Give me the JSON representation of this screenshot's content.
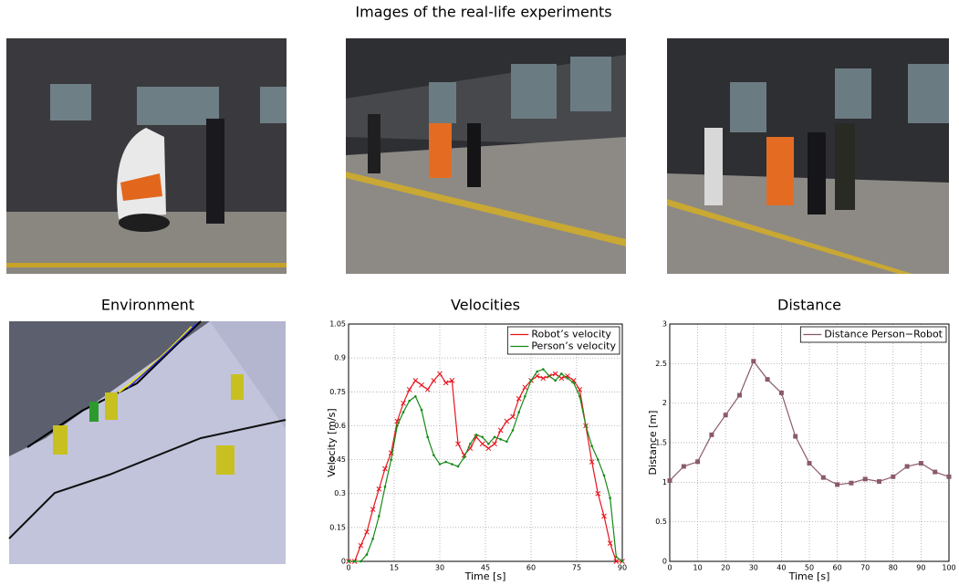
{
  "title": "Images of the real-life experiments",
  "panels": [
    "Environment"
  ],
  "chart_data": [
    {
      "type": "line",
      "title": "Velocities",
      "xlabel": "Time [s]",
      "ylabel": "Velocity [m/s]",
      "x": [
        0,
        2,
        4,
        6,
        8,
        10,
        12,
        14,
        16,
        18,
        20,
        22,
        24,
        26,
        28,
        30,
        32,
        34,
        36,
        38,
        40,
        42,
        44,
        46,
        48,
        50,
        52,
        54,
        56,
        58,
        60,
        62,
        64,
        66,
        68,
        70,
        72,
        74,
        76,
        78,
        80,
        82,
        84,
        86,
        88,
        90
      ],
      "series": [
        {
          "name": "Robot’s velocity",
          "color": "#e8121b",
          "marker": "x",
          "values": [
            0,
            0,
            0.07,
            0.13,
            0.23,
            0.32,
            0.41,
            0.48,
            0.62,
            0.7,
            0.76,
            0.8,
            0.78,
            0.76,
            0.8,
            0.83,
            0.79,
            0.8,
            0.52,
            0.47,
            0.5,
            0.55,
            0.52,
            0.5,
            0.52,
            0.58,
            0.62,
            0.64,
            0.72,
            0.77,
            0.8,
            0.82,
            0.81,
            0.82,
            0.83,
            0.81,
            0.82,
            0.8,
            0.76,
            0.6,
            0.44,
            0.3,
            0.2,
            0.08,
            0,
            0
          ]
        },
        {
          "name": "Person’s velocity",
          "color": "#168a16",
          "marker": "dot",
          "values": [
            0,
            0,
            0,
            0.03,
            0.1,
            0.2,
            0.33,
            0.45,
            0.6,
            0.66,
            0.71,
            0.73,
            0.67,
            0.55,
            0.47,
            0.43,
            0.44,
            0.43,
            0.42,
            0.46,
            0.52,
            0.56,
            0.55,
            0.52,
            0.55,
            0.54,
            0.53,
            0.58,
            0.66,
            0.73,
            0.8,
            0.84,
            0.85,
            0.82,
            0.8,
            0.83,
            0.81,
            0.79,
            0.73,
            0.6,
            0.51,
            0.45,
            0.38,
            0.28,
            0.02,
            0
          ]
        }
      ],
      "xlim": [
        0,
        90
      ],
      "xticks": [
        0,
        15,
        30,
        45,
        60,
        75,
        90
      ],
      "ylim": [
        0,
        1.05
      ],
      "yticks": [
        0,
        0.15,
        0.3,
        0.45,
        0.6,
        0.75,
        0.9,
        1.05
      ],
      "grid": true,
      "legend": "upper right"
    },
    {
      "type": "line",
      "title": "Distance",
      "xlabel": "Time [s]",
      "ylabel": "Distance [m]",
      "x": [
        0,
        5,
        10,
        15,
        20,
        25,
        30,
        35,
        40,
        45,
        50,
        55,
        60,
        65,
        70,
        75,
        80,
        85,
        90,
        95,
        100
      ],
      "series": [
        {
          "name": "Distance Person−Robot",
          "color": "#8b5a6a",
          "marker": "square",
          "values": [
            1.02,
            1.2,
            1.26,
            1.6,
            1.85,
            2.1,
            2.53,
            2.3,
            2.13,
            1.58,
            1.24,
            1.06,
            0.97,
            0.99,
            1.04,
            1.01,
            1.07,
            1.2,
            1.24,
            1.13,
            1.07
          ]
        }
      ],
      "xlim": [
        0,
        100
      ],
      "xticks": [
        0,
        10,
        20,
        30,
        40,
        50,
        60,
        70,
        80,
        90,
        100
      ],
      "ylim": [
        0,
        3
      ],
      "yticks": [
        0,
        0.5,
        1,
        1.5,
        2,
        2.5,
        3
      ],
      "grid": true,
      "legend": "upper right"
    }
  ]
}
